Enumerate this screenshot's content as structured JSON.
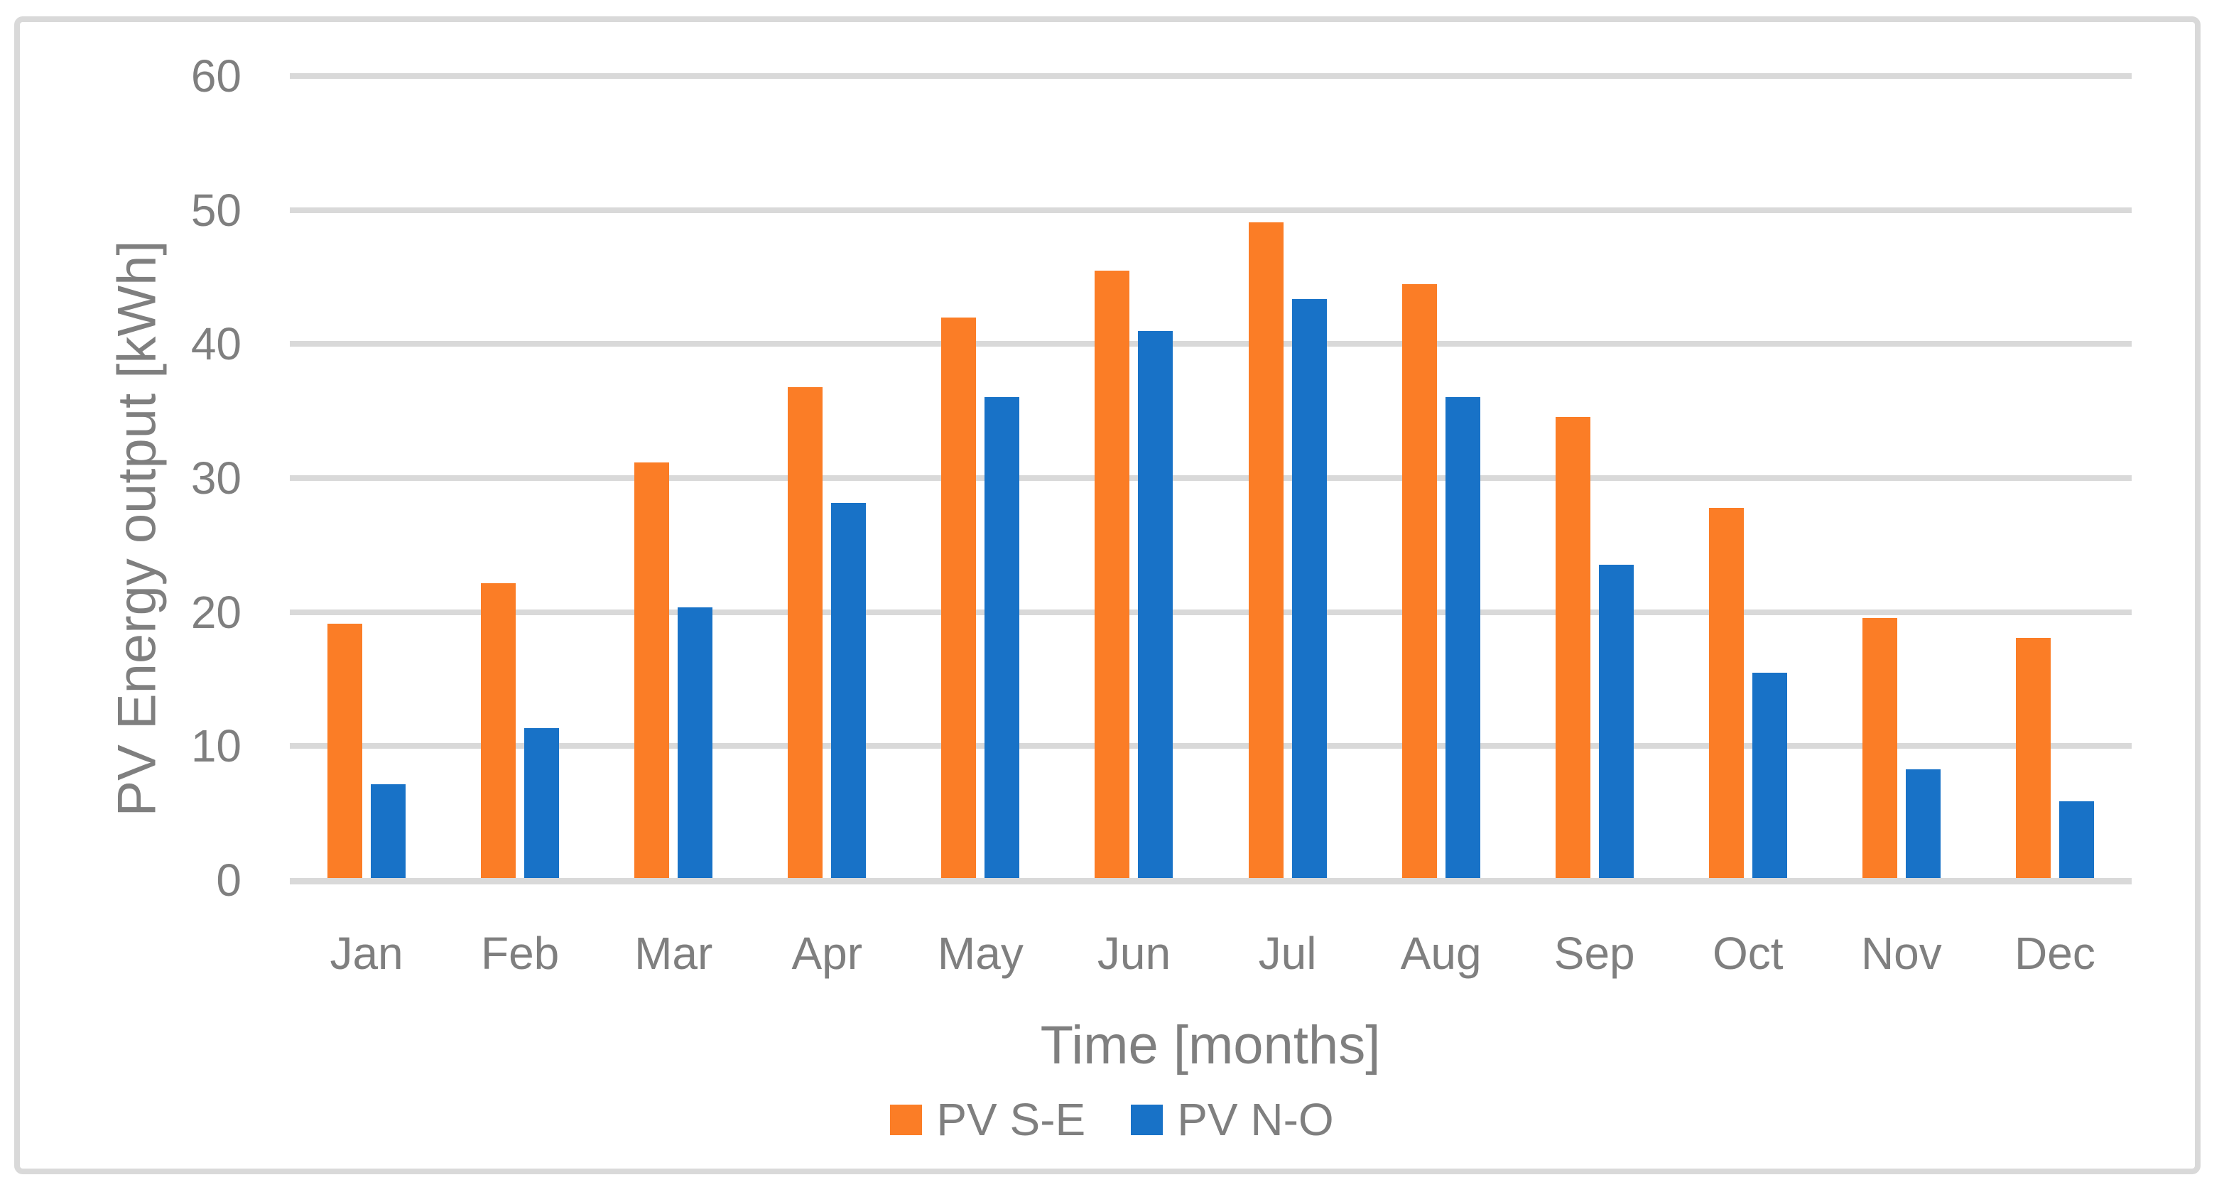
{
  "figure": {
    "background_color": "#FFFFFF",
    "frame_border_color": "#D9D9D9",
    "gridline_color": "#D9D9D9",
    "text_color": "#7F7F7F"
  },
  "chart_data": {
    "type": "bar",
    "title": "",
    "xlabel": "Time [months]",
    "ylabel": "PV Energy output [kWh]",
    "categories": [
      "Jan",
      "Feb",
      "Mar",
      "Apr",
      "May",
      "Jun",
      "Jul",
      "Aug",
      "Sep",
      "Oct",
      "Nov",
      "Dec"
    ],
    "series": [
      {
        "name": "PV S-E",
        "color": "#FB7D26",
        "values": [
          19.0,
          22.0,
          31.0,
          36.6,
          41.8,
          45.3,
          48.9,
          44.3,
          34.4,
          27.6,
          19.4,
          17.9
        ]
      },
      {
        "name": "PV N-O",
        "color": "#1872C7",
        "values": [
          7.0,
          11.2,
          20.2,
          28.0,
          35.9,
          40.8,
          43.2,
          35.9,
          23.4,
          15.3,
          8.1,
          5.7
        ]
      }
    ],
    "ylim": [
      0,
      60
    ],
    "yticks": [
      0,
      10,
      20,
      30,
      40,
      50,
      60
    ],
    "grid": true,
    "legend_position": "bottom",
    "legend_labels": [
      "PV S-E",
      "PV N-O"
    ]
  }
}
